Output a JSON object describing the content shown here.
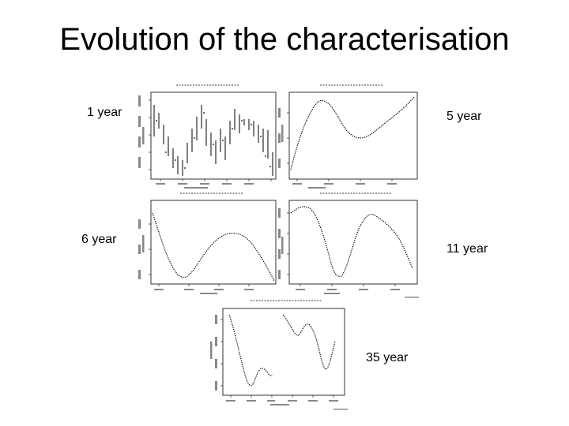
{
  "slide": {
    "title": "Evolution of the characterisation"
  },
  "labels": {
    "p1": "1 year",
    "p2": "5 year",
    "p3": "6 year",
    "p4": "11 year",
    "p5": "35 year"
  }
}
